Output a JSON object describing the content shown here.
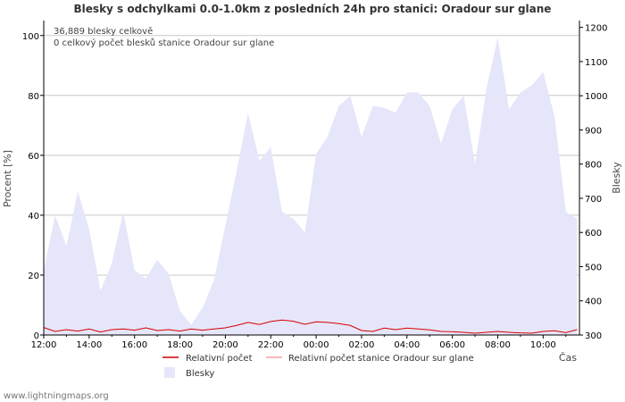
{
  "chart_data": {
    "type": "area",
    "title": "Blesky s odchylkami 0.0-1.0km z posledních 24h pro stanici: Oradour sur glane",
    "xlabel": "Čas",
    "ylabel_left": "Procent   [%]",
    "ylabel_right": "Blesky",
    "y_left_range": [
      0,
      105
    ],
    "y_right_range": [
      300,
      1220
    ],
    "y_left_ticks": [
      "0",
      "20",
      "40",
      "60",
      "80",
      "100"
    ],
    "y_right_ticks": [
      "300",
      "400",
      "500",
      "600",
      "700",
      "800",
      "900",
      "1000",
      "1100",
      "1200"
    ],
    "x_tick_labels": [
      "12:00",
      "14:00",
      "16:00",
      "18:00",
      "20:00",
      "22:00",
      "00:00",
      "02:00",
      "04:00",
      "06:00",
      "08:00",
      "10:00"
    ],
    "info_lines": [
      "36,889 blesky celkově",
      "0 celkový počet blesků stanice Oradour sur glane"
    ],
    "series": [
      {
        "name": "Blesky",
        "axis": "right",
        "color": "#e6e6fa",
        "x_hours": [
          0,
          0.5,
          1,
          1.5,
          2,
          2.5,
          3,
          3.5,
          4,
          4.5,
          5,
          5.5,
          6,
          6.5,
          7,
          7.5,
          8,
          8.5,
          9,
          9.5,
          10,
          10.5,
          11,
          11.5,
          12,
          12.5,
          13,
          13.5,
          14,
          14.5,
          15,
          15.5,
          16,
          16.5,
          17,
          17.5,
          18,
          18.5,
          19,
          19.5,
          20,
          20.5,
          21,
          21.5,
          22,
          22.5,
          23,
          23.5
        ],
        "values": [
          490,
          650,
          560,
          720,
          610,
          430,
          510,
          660,
          490,
          465,
          520,
          480,
          370,
          330,
          380,
          460,
          620,
          780,
          950,
          810,
          850,
          660,
          640,
          600,
          830,
          880,
          970,
          1000,
          880,
          970,
          965,
          950,
          1010,
          1010,
          970,
          860,
          960,
          1000,
          800,
          1020,
          1170,
          960,
          1010,
          1030,
          1070,
          940,
          660,
          640
        ]
      },
      {
        "name": "Relativní počet",
        "axis": "left",
        "color": "#d40000",
        "x_hours": [
          0,
          0.5,
          1,
          1.5,
          2,
          2.5,
          3,
          3.5,
          4,
          4.5,
          5,
          5.5,
          6,
          6.5,
          7,
          7.5,
          8,
          8.5,
          9,
          9.5,
          10,
          10.5,
          11,
          11.5,
          12,
          12.5,
          13,
          13.5,
          14,
          14.5,
          15,
          15.5,
          16,
          16.5,
          17,
          17.5,
          18,
          18.5,
          19,
          19.5,
          20,
          20.5,
          21,
          21.5,
          22,
          22.5,
          23,
          23.5
        ],
        "values": [
          2.5,
          1.2,
          1.8,
          1.3,
          2,
          1,
          1.8,
          2,
          1.6,
          2.4,
          1.5,
          1.8,
          1.3,
          2,
          1.6,
          2,
          2.4,
          3.2,
          4.2,
          3.5,
          4.5,
          5,
          4.6,
          3.6,
          4.4,
          4.2,
          3.8,
          3.2,
          1.5,
          1.2,
          2.3,
          1.8,
          2.3,
          2,
          1.7,
          1.2,
          1.1,
          0.9,
          0.6,
          0.9,
          1.2,
          0.9,
          0.7,
          0.6,
          1.2,
          1.4,
          0.8,
          1.8
        ]
      },
      {
        "name": "Relativní počet stanice Oradour sur glane",
        "axis": "left",
        "color": "#f4a0a0",
        "x_hours": [
          0,
          23.5
        ],
        "values": [
          0,
          0
        ]
      }
    ]
  },
  "footer": "www.lightningmaps.org"
}
